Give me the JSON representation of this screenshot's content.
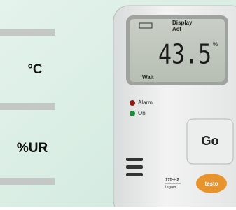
{
  "labels": {
    "unit_celsius": "°C",
    "unit_humidity": "%UR"
  },
  "device": {
    "display_line1": "Display",
    "display_line2": "Act",
    "reading": "43.5",
    "reading_unit": "%",
    "status": "Wait",
    "led_alarm": "Alarm",
    "led_on": "On",
    "button": "Go",
    "model": "175-H2",
    "model_sub": "Logger",
    "brand": "testo"
  }
}
